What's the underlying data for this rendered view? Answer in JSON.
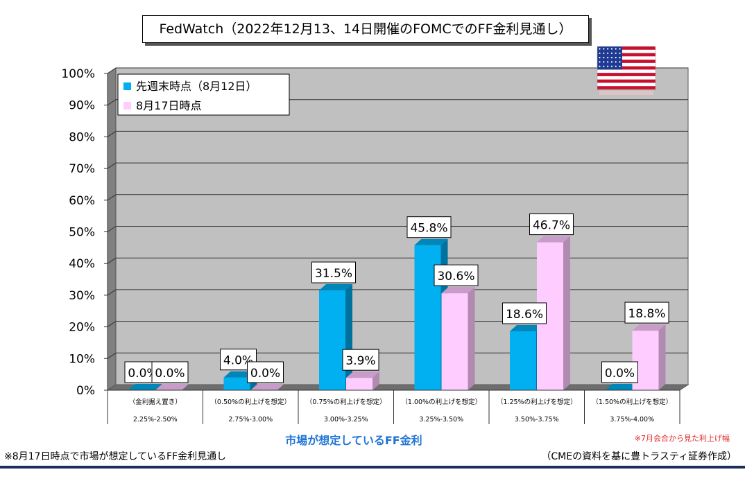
{
  "title": "FedWatch（2022年12月13、14日開催のFOMCでのFF金利見通し）",
  "chart_data": {
    "type": "bar",
    "categories": [
      "（金利据え置き）",
      "（0.50%の利上げを想定）",
      "（0.75%の利上げを想定）",
      "（1.00%の利上げを想定）",
      "（1.25%の利上げを想定）",
      "（1.50%の利上げを想定）"
    ],
    "ranges": [
      "2.25%-2.50%",
      "2.75%-3.00%",
      "3.00%-3.25%",
      "3.25%-3.50%",
      "3.50%-3.75%",
      "3.75%-4.00%"
    ],
    "series": [
      {
        "name": "先週末時点（8月12日）",
        "values": [
          0.0,
          4.0,
          31.5,
          45.8,
          18.6,
          0.0
        ],
        "labels": [
          "0.0%",
          "4.0%",
          "31.5%",
          "45.8%",
          "18.6%",
          "0.0%"
        ],
        "color": "#00b0f0",
        "top_color": "#0086b8",
        "side_color": "#0072a0"
      },
      {
        "name": "8月17日時点",
        "values": [
          0.0,
          0.0,
          3.9,
          30.6,
          46.7,
          18.8
        ],
        "labels": [
          "0.0%",
          "0.0%",
          "3.9%",
          "30.6%",
          "46.7%",
          "18.8%"
        ],
        "color": "#ffccff",
        "top_color": "#c89cc8",
        "side_color": "#b08ab0"
      }
    ],
    "yticks": [
      "0%",
      "10%",
      "20%",
      "30%",
      "40%",
      "50%",
      "60%",
      "70%",
      "80%",
      "90%",
      "100%"
    ],
    "ylim": [
      0,
      100
    ],
    "xlabel": "市場が想定しているFF金利",
    "grid": true,
    "legend_position": "top-left",
    "background_color": "#c0c0c0"
  },
  "notes": {
    "red_note": "※7月会合から見た利上げ幅",
    "left_note": "※8月17日時点で市場が想定しているFF金利見通し",
    "right_note": "（CMEの資料を基に豊トラスティ証券作成）"
  },
  "flag": "us-flag-icon"
}
